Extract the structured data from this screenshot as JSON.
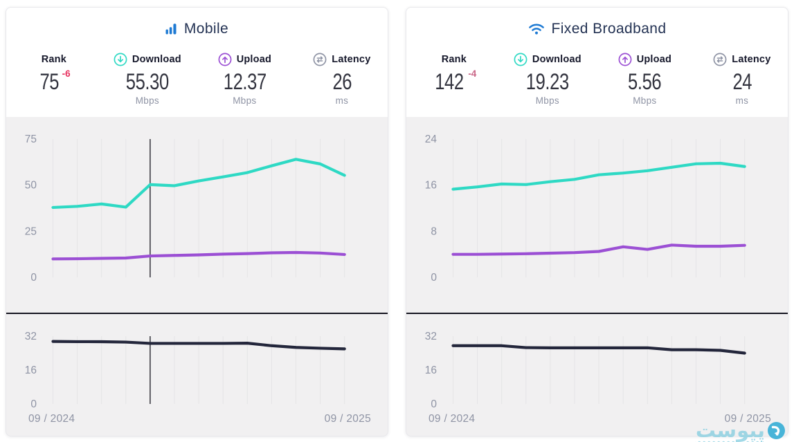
{
  "panels": [
    {
      "title": "Mobile",
      "stats": {
        "rank": {
          "label": "Rank",
          "value": "75",
          "delta": "-6",
          "delta_color": "#e73360"
        },
        "download": {
          "label": "Download",
          "value": "55.30",
          "unit": "Mbps"
        },
        "upload": {
          "label": "Upload",
          "value": "12.37",
          "unit": "Mbps"
        },
        "latency": {
          "label": "Latency",
          "value": "26",
          "unit": "ms"
        }
      },
      "x_axis": {
        "start": "09 / 2024",
        "end": "09 / 2025"
      }
    },
    {
      "title": "Fixed Broadband",
      "stats": {
        "rank": {
          "label": "Rank",
          "value": "142",
          "delta": "-4",
          "delta_color": "#c96687"
        },
        "download": {
          "label": "Download",
          "value": "19.23",
          "unit": "Mbps"
        },
        "upload": {
          "label": "Upload",
          "value": "5.56",
          "unit": "Mbps"
        },
        "latency": {
          "label": "Latency",
          "value": "24",
          "unit": "ms"
        }
      },
      "x_axis": {
        "start": "09 / 2024",
        "end": "09 / 2025"
      }
    }
  ],
  "chart_data": [
    {
      "type": "line",
      "panel": "Mobile",
      "title": "Mobile download & upload speed over time (Mbps)",
      "x_labels": [
        "09 / 2024",
        "09 / 2025"
      ],
      "x_unit": "month",
      "points": 13,
      "ylim": [
        0,
        75
      ],
      "yticks": [
        0,
        25,
        50,
        75
      ],
      "grid": "vertical-monthly",
      "cursor_index": 4,
      "series": [
        {
          "name": "Download",
          "color": "#2ed9c4",
          "values": [
            37.9,
            38.5,
            39.8,
            38.1,
            50.3,
            49.7,
            52.3,
            54.5,
            56.8,
            60.5,
            64.0,
            61.5,
            55.3
          ]
        },
        {
          "name": "Upload",
          "color": "#9b4fd4",
          "values": [
            10.0,
            10.1,
            10.3,
            10.5,
            11.6,
            11.9,
            12.2,
            12.6,
            12.9,
            13.3,
            13.5,
            13.2,
            12.4
          ]
        }
      ]
    },
    {
      "type": "line",
      "panel": "Mobile",
      "title": "Mobile latency over time (ms)",
      "x_labels": [
        "09 / 2024",
        "09 / 2025"
      ],
      "x_unit": "month",
      "points": 13,
      "ylim": [
        0,
        32
      ],
      "yticks": [
        0,
        16,
        32
      ],
      "grid": "vertical-monthly",
      "cursor_index": 4,
      "series": [
        {
          "name": "Latency",
          "color": "#23263b",
          "values": [
            29.5,
            29.4,
            29.4,
            29.2,
            28.6,
            28.6,
            28.6,
            28.6,
            28.7,
            27.5,
            26.7,
            26.3,
            26.0
          ]
        }
      ]
    },
    {
      "type": "line",
      "panel": "Fixed Broadband",
      "title": "Fixed broadband download & upload speed over time (Mbps)",
      "x_labels": [
        "09 / 2024",
        "09 / 2025"
      ],
      "x_unit": "month",
      "points": 13,
      "ylim": [
        0,
        24
      ],
      "yticks": [
        0,
        8,
        16,
        24
      ],
      "grid": "vertical-monthly",
      "cursor_index": null,
      "series": [
        {
          "name": "Download",
          "color": "#2ed9c4",
          "values": [
            15.3,
            15.7,
            16.2,
            16.1,
            16.6,
            17.0,
            17.8,
            18.1,
            18.5,
            19.1,
            19.7,
            19.8,
            19.23
          ]
        },
        {
          "name": "Upload",
          "color": "#9b4fd4",
          "values": [
            4.0,
            4.0,
            4.05,
            4.1,
            4.2,
            4.3,
            4.5,
            5.3,
            4.85,
            5.6,
            5.4,
            5.4,
            5.56
          ]
        }
      ]
    },
    {
      "type": "line",
      "panel": "Fixed Broadband",
      "title": "Fixed broadband latency over time (ms)",
      "x_labels": [
        "09 / 2024",
        "09 / 2025"
      ],
      "x_unit": "month",
      "points": 13,
      "ylim": [
        0,
        32
      ],
      "yticks": [
        0,
        16,
        32
      ],
      "grid": "vertical-monthly",
      "cursor_index": null,
      "series": [
        {
          "name": "Latency",
          "color": "#23263b",
          "values": [
            27.5,
            27.5,
            27.5,
            26.6,
            26.5,
            26.5,
            26.5,
            26.5,
            26.5,
            25.6,
            25.6,
            25.3,
            24.0
          ]
        }
      ]
    }
  ],
  "colors": {
    "download_accent": "#2ed9c4",
    "upload_accent": "#9b4fd4",
    "latency_line": "#23263b",
    "latency_icon_gray": "#8e93a4",
    "brand_blue": "#1e7ad3",
    "rank_delta_mobile": "#e73360",
    "rank_delta_fixed": "#c96687",
    "chart_background": "#f1f0f1",
    "gridline": "#e5e4e6",
    "watermark_teal": "#7ecbdf"
  },
  "watermark": {
    "text": "پیوست"
  }
}
